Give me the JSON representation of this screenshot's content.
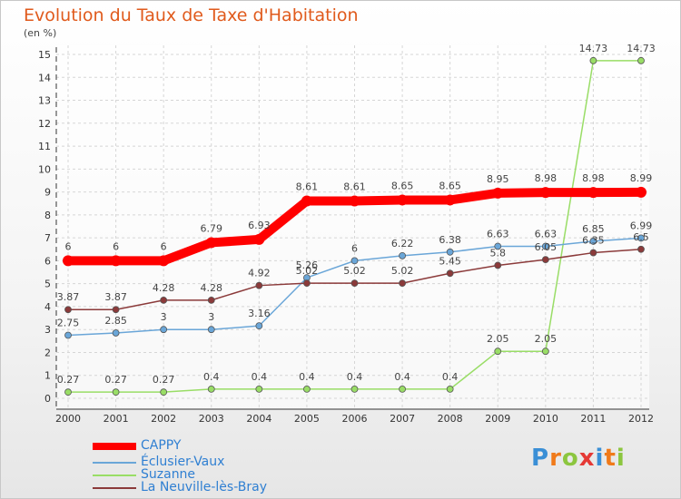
{
  "chart_data": {
    "type": "line",
    "title": "Evolution du Taux de Taxe d'Habitation",
    "ylabel": "(en %)",
    "xlabel": "",
    "ylim": [
      0,
      15
    ],
    "yticks": [
      "0",
      "1",
      "2",
      "3",
      "4",
      "5",
      "6",
      "7",
      "8",
      "9",
      "10",
      "11",
      "12",
      "13",
      "14",
      "15"
    ],
    "categories": [
      "2000",
      "2001",
      "2002",
      "2003",
      "2004",
      "2005",
      "2006",
      "2007",
      "2008",
      "2009",
      "2010",
      "2011",
      "2012"
    ],
    "grid": true,
    "legend_position": "bottom-left",
    "series": [
      {
        "name": "CAPPY",
        "color": "#ff0000",
        "values": [
          6,
          6,
          6,
          6.79,
          6.93,
          8.61,
          8.61,
          8.65,
          8.65,
          8.95,
          8.98,
          8.98,
          8.99
        ],
        "labels": [
          "6",
          "6",
          "6",
          "6.79",
          "6.93",
          "8.61",
          "8.61",
          "8.65",
          "8.65",
          "8.95",
          "8.98",
          "8.98",
          "8.99"
        ]
      },
      {
        "name": "Éclusier-Vaux",
        "color": "#6aa6d8",
        "values": [
          2.75,
          2.85,
          3,
          3,
          3.16,
          5.26,
          6,
          6.22,
          6.38,
          6.63,
          6.63,
          6.85,
          6.99
        ],
        "labels": [
          "2.75",
          "2.85",
          "3",
          "3",
          "3.16",
          "5.26",
          "6",
          "6.22",
          "6.38",
          "6.63",
          "6.63",
          "6.85",
          "6.99"
        ]
      },
      {
        "name": "Suzanne",
        "color": "#99dd66",
        "values": [
          0.27,
          0.27,
          0.27,
          0.4,
          0.4,
          0.4,
          0.4,
          0.4,
          0.4,
          2.05,
          2.05,
          14.73,
          14.73
        ],
        "labels": [
          "0.27",
          "0.27",
          "0.27",
          "0.4",
          "0.4",
          "0.4",
          "0.4",
          "0.4",
          "0.4",
          "2.05",
          "2.05",
          "14.73",
          "14.73"
        ]
      },
      {
        "name": "La Neuville-lès-Bray",
        "color": "#8b3a3a",
        "values": [
          3.87,
          3.87,
          4.28,
          4.28,
          4.92,
          5.02,
          5.02,
          5.02,
          5.45,
          5.8,
          6.05,
          6.35,
          6.5
        ],
        "labels": [
          "3.87",
          "3.87",
          "4.28",
          "4.28",
          "4.92",
          "5.02",
          "5.02",
          "5.02",
          "5.45",
          "5.8",
          "6.05",
          "6.35",
          "6.5"
        ]
      }
    ]
  },
  "logo_text": "Proxiti",
  "logo_colors": [
    "#3a8fd6",
    "#f07a1a",
    "#8cc63f",
    "#e53935",
    "#3a8fd6",
    "#f07a1a",
    "#8cc63f"
  ]
}
